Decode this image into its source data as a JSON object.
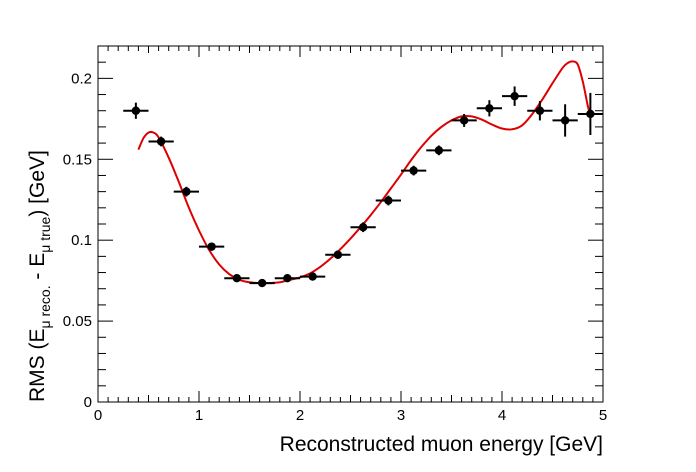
{
  "chart_data": {
    "type": "scatter",
    "xlabel": "Reconstructed muon energy [GeV]",
    "ylabel": {
      "prefix": "RMS (E",
      "sub1": "μ reco.",
      "middle": " - E",
      "sub2": "μ true",
      "suffix": ") [GeV]"
    },
    "xlim": [
      0,
      5
    ],
    "ylim": [
      0,
      0.22
    ],
    "x_ticks": [
      0,
      1,
      2,
      3,
      4,
      5
    ],
    "x_tick_labels": [
      "0",
      "1",
      "2",
      "3",
      "4",
      "5"
    ],
    "y_ticks": [
      0,
      0.05,
      0.1,
      0.15,
      0.2
    ],
    "y_tick_labels": [
      "0",
      "0.05",
      "0.1",
      "0.15",
      "0.2"
    ],
    "grid": false,
    "series": [
      {
        "kind": "points",
        "color": "#000000",
        "x": [
          0.375,
          0.625,
          0.875,
          1.125,
          1.375,
          1.625,
          1.875,
          2.125,
          2.375,
          2.625,
          2.875,
          3.125,
          3.375,
          3.625,
          3.875,
          4.125,
          4.375,
          4.625,
          4.875
        ],
        "y": [
          0.18,
          0.161,
          0.13,
          0.096,
          0.0765,
          0.0735,
          0.0765,
          0.0775,
          0.091,
          0.108,
          0.1245,
          0.143,
          0.1555,
          0.174,
          0.1815,
          0.189,
          0.18,
          0.174,
          0.178
        ],
        "x_err": 0.125,
        "y_err": [
          0.005,
          0.003,
          0.003,
          0.0025,
          0.002,
          0.0018,
          0.002,
          0.002,
          0.0025,
          0.003,
          0.003,
          0.003,
          0.003,
          0.004,
          0.005,
          0.006,
          0.006,
          0.01,
          0.013
        ]
      },
      {
        "kind": "fit-curve",
        "color": "#dd0000",
        "x": [
          0.4,
          0.45,
          0.5,
          0.55,
          0.6,
          0.7,
          0.8,
          0.9,
          1.0,
          1.1,
          1.2,
          1.3,
          1.4,
          1.5,
          1.6,
          1.7,
          1.8,
          1.9,
          2.0,
          2.1,
          2.2,
          2.3,
          2.4,
          2.5,
          2.6,
          2.7,
          2.8,
          2.9,
          3.0,
          3.1,
          3.2,
          3.3,
          3.4,
          3.5,
          3.6,
          3.7,
          3.8,
          3.9,
          4.0,
          4.1,
          4.2,
          4.3,
          4.4,
          4.5,
          4.6,
          4.65,
          4.7,
          4.75,
          4.8,
          4.85,
          4.88
        ],
        "y": [
          0.156,
          0.163,
          0.1665,
          0.1665,
          0.1635,
          0.151,
          0.136,
          0.12,
          0.106,
          0.094,
          0.085,
          0.079,
          0.0755,
          0.074,
          0.0735,
          0.0735,
          0.074,
          0.0755,
          0.077,
          0.0795,
          0.0835,
          0.0885,
          0.0945,
          0.101,
          0.108,
          0.1155,
          0.1235,
          0.132,
          0.1405,
          0.1495,
          0.1575,
          0.1645,
          0.17,
          0.174,
          0.1765,
          0.1765,
          0.1745,
          0.1715,
          0.169,
          0.1685,
          0.171,
          0.178,
          0.187,
          0.197,
          0.2065,
          0.2095,
          0.2105,
          0.2085,
          0.198,
          0.183,
          0.176
        ]
      }
    ]
  }
}
